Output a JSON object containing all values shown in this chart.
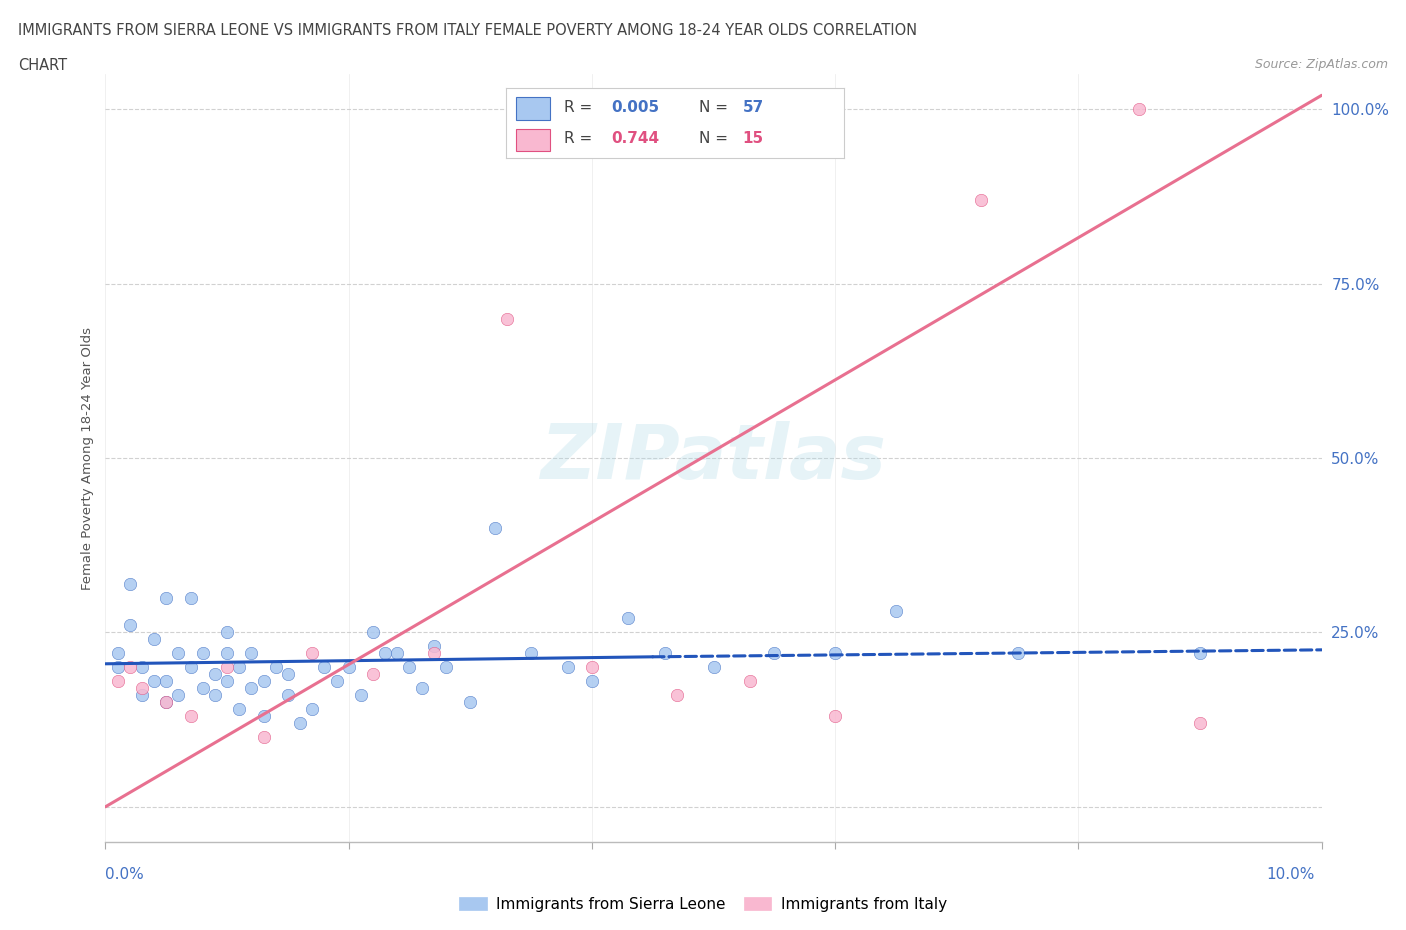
{
  "title_line1": "IMMIGRANTS FROM SIERRA LEONE VS IMMIGRANTS FROM ITALY FEMALE POVERTY AMONG 18-24 YEAR OLDS CORRELATION",
  "title_line2": "CHART",
  "source": "Source: ZipAtlas.com",
  "ylabel": "Female Poverty Among 18-24 Year Olds",
  "watermark": "ZIPatlas",
  "color_sierra": "#A8C8F0",
  "color_italy": "#F9B8D0",
  "color_r_blue": "#4472C4",
  "color_r_pink": "#E05080",
  "color_trendline_sierra": "#2255BB",
  "color_trendline_italy": "#E87090",
  "xmin": 0.0,
  "xmax": 0.1,
  "ymin": -0.05,
  "ymax": 1.05,
  "sierra_leone_x": [
    0.001,
    0.001,
    0.002,
    0.002,
    0.003,
    0.003,
    0.004,
    0.004,
    0.005,
    0.005,
    0.005,
    0.006,
    0.006,
    0.007,
    0.007,
    0.008,
    0.008,
    0.009,
    0.009,
    0.01,
    0.01,
    0.01,
    0.011,
    0.011,
    0.012,
    0.012,
    0.013,
    0.013,
    0.014,
    0.015,
    0.015,
    0.016,
    0.017,
    0.018,
    0.019,
    0.02,
    0.021,
    0.022,
    0.023,
    0.024,
    0.025,
    0.026,
    0.027,
    0.028,
    0.03,
    0.032,
    0.035,
    0.038,
    0.04,
    0.043,
    0.046,
    0.05,
    0.055,
    0.06,
    0.065,
    0.075,
    0.09
  ],
  "sierra_leone_y": [
    0.22,
    0.2,
    0.32,
    0.26,
    0.2,
    0.16,
    0.18,
    0.24,
    0.3,
    0.18,
    0.15,
    0.22,
    0.16,
    0.3,
    0.2,
    0.17,
    0.22,
    0.16,
    0.19,
    0.22,
    0.18,
    0.25,
    0.14,
    0.2,
    0.17,
    0.22,
    0.13,
    0.18,
    0.2,
    0.16,
    0.19,
    0.12,
    0.14,
    0.2,
    0.18,
    0.2,
    0.16,
    0.25,
    0.22,
    0.22,
    0.2,
    0.17,
    0.23,
    0.2,
    0.15,
    0.4,
    0.22,
    0.2,
    0.18,
    0.27,
    0.22,
    0.2,
    0.22,
    0.22,
    0.28,
    0.22,
    0.22
  ],
  "italy_x": [
    0.001,
    0.002,
    0.003,
    0.005,
    0.007,
    0.01,
    0.013,
    0.017,
    0.022,
    0.027,
    0.033,
    0.04,
    0.047,
    0.053,
    0.06,
    0.072,
    0.085,
    0.09
  ],
  "italy_y": [
    0.18,
    0.2,
    0.17,
    0.15,
    0.13,
    0.2,
    0.1,
    0.22,
    0.19,
    0.22,
    0.7,
    0.2,
    0.16,
    0.18,
    0.13,
    0.87,
    1.0,
    0.12
  ],
  "sierra_trend_x": [
    0.0,
    0.045
  ],
  "sierra_trend_y": [
    0.205,
    0.215
  ],
  "italy_trend_x": [
    0.0,
    0.1
  ],
  "italy_trend_y": [
    0.0,
    1.02
  ],
  "yticks": [
    0.0,
    0.25,
    0.5,
    0.75,
    1.0
  ],
  "ytick_labels": [
    "",
    "25.0%",
    "50.0%",
    "75.0%",
    "100.0%"
  ]
}
